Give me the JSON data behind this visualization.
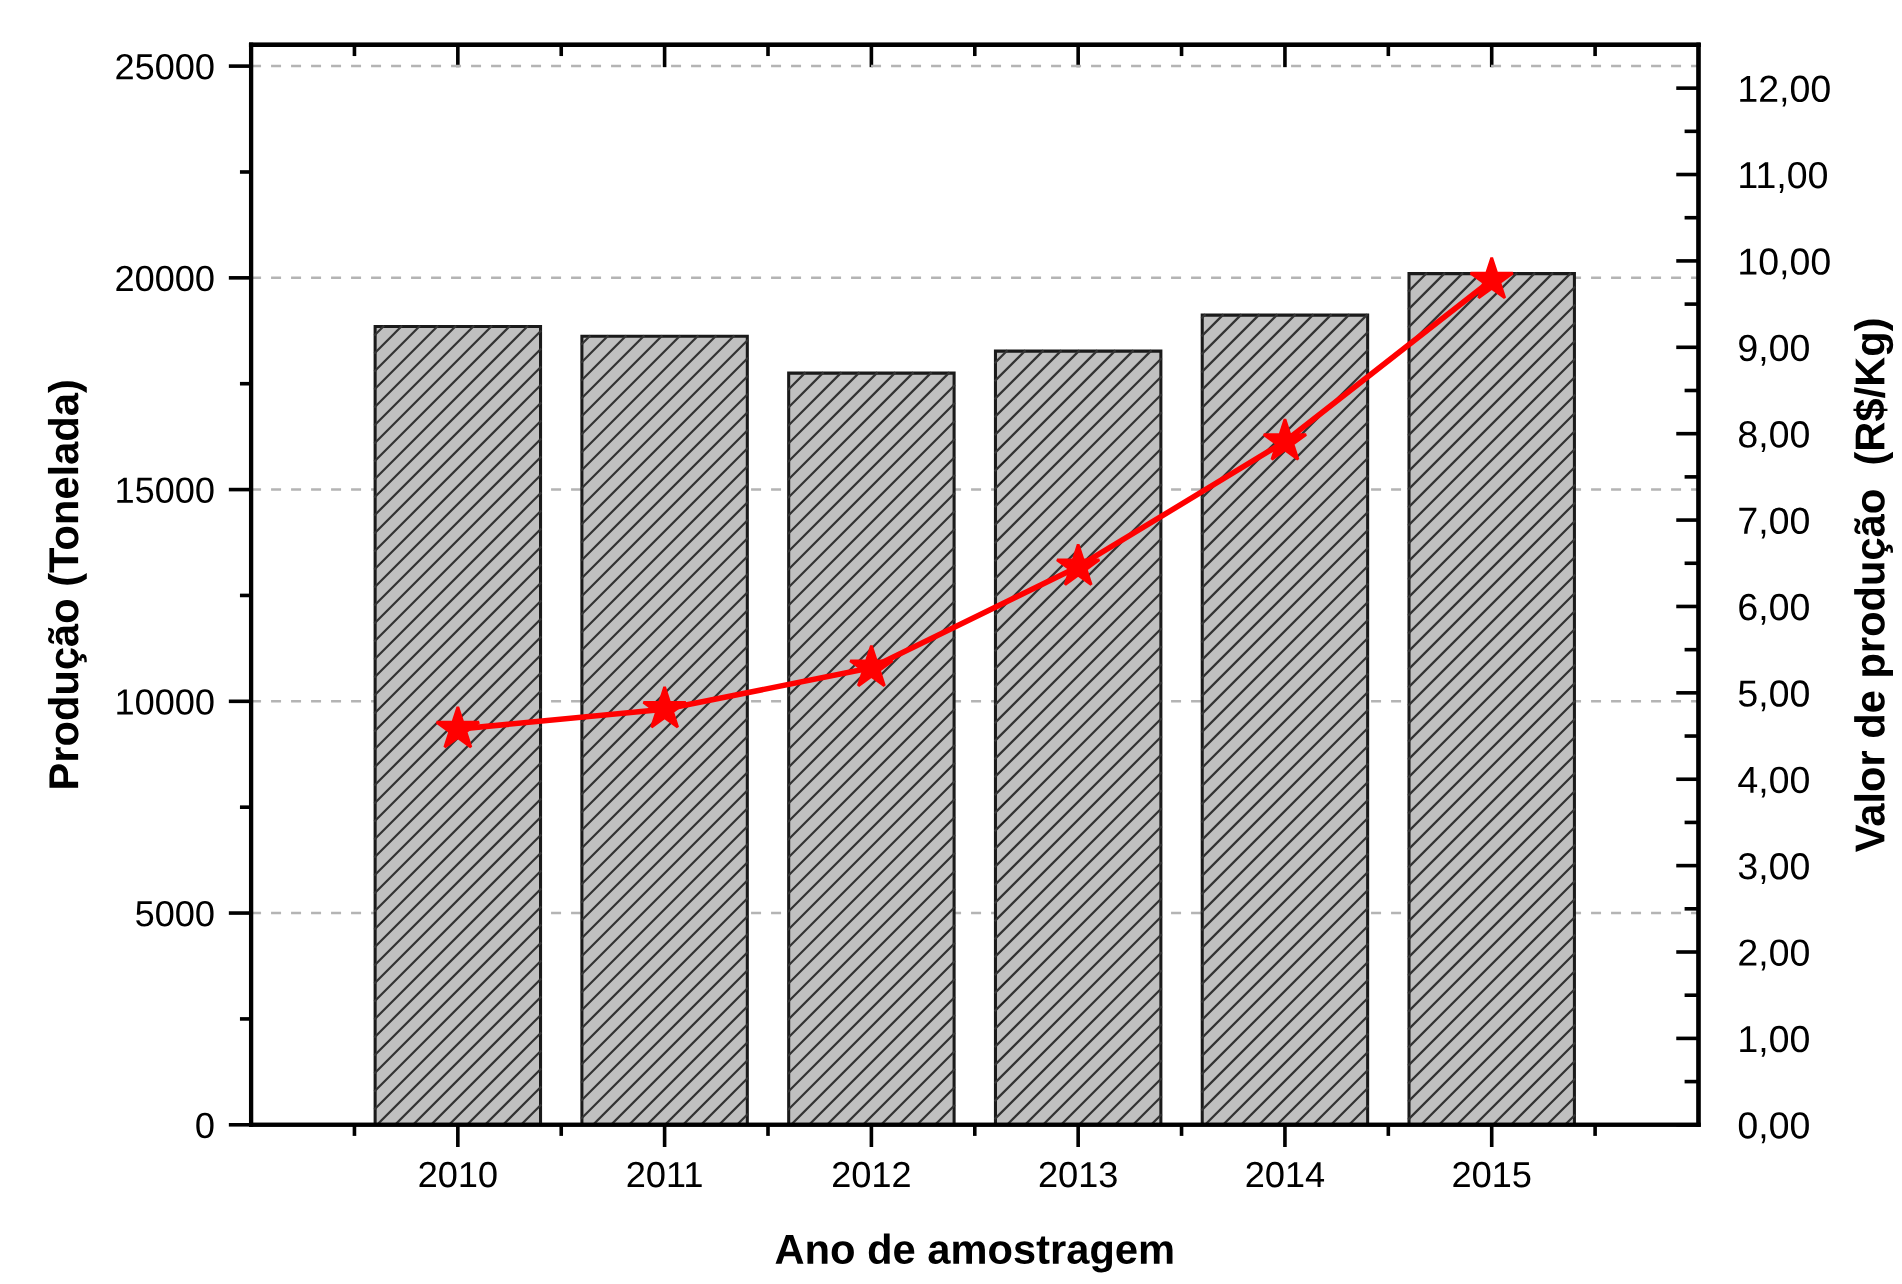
{
  "chart_data": {
    "type": "bar",
    "xlabel": "Ano de amostragem",
    "ylabel": "Produção (Tonelada)",
    "y2label": "Valor de produção  (R$/Kg)",
    "categories": [
      "2010",
      "2011",
      "2012",
      "2013",
      "2014",
      "2015"
    ],
    "series": [
      {
        "type": "bar",
        "color": "#c0c0c0",
        "values": [
          18850,
          18620,
          17750,
          18270,
          19120,
          20100
        ]
      },
      {
        "type": "line",
        "axis": "y2",
        "color": "#ff0000",
        "values": [
          4.58,
          4.81,
          5.29,
          6.46,
          7.91,
          9.78
        ]
      }
    ],
    "ylim": [
      0,
      25500
    ],
    "yticks": [
      0,
      {
        "value": 2500,
        "label": null
      },
      5000,
      {
        "value": 7500,
        "label": null
      },
      10000,
      {
        "value": 12500,
        "label": null
      },
      15000,
      {
        "value": 17500,
        "label": null
      },
      20000,
      {
        "value": 22500,
        "label": null
      },
      25000
    ],
    "y2lim": [
      0,
      12.5
    ],
    "y2ticks": [
      {
        "value": 0,
        "label": "0,00"
      },
      {
        "value": 0.5,
        "label": null
      },
      {
        "value": 1,
        "label": "1,00"
      },
      {
        "value": 1.5,
        "label": null
      },
      {
        "value": 2,
        "label": "2,00"
      },
      {
        "value": 2.5,
        "label": null
      },
      {
        "value": 3,
        "label": "3,00"
      },
      {
        "value": 3.5,
        "label": null
      },
      {
        "value": 4,
        "label": "4,00"
      },
      {
        "value": 4.5,
        "label": null
      },
      {
        "value": 5,
        "label": "5,00"
      },
      {
        "value": 5.5,
        "label": null
      },
      {
        "value": 6,
        "label": "6,00"
      },
      {
        "value": 6.5,
        "label": null
      },
      {
        "value": 7,
        "label": "7,00"
      },
      {
        "value": 7.5,
        "label": null
      },
      {
        "value": 8,
        "label": "8,00"
      },
      {
        "value": 8.5,
        "label": null
      },
      {
        "value": 9,
        "label": "9,00"
      },
      {
        "value": 9.5,
        "label": null
      },
      {
        "value": 10,
        "label": "10,00"
      },
      {
        "value": 10.5,
        "label": null
      },
      {
        "value": 11,
        "label": "11,00"
      },
      {
        "value": 11.5,
        "label": null
      },
      {
        "value": 12,
        "label": "12,00"
      }
    ],
    "grid": "y",
    "marker": "star",
    "line_style": "solid"
  }
}
